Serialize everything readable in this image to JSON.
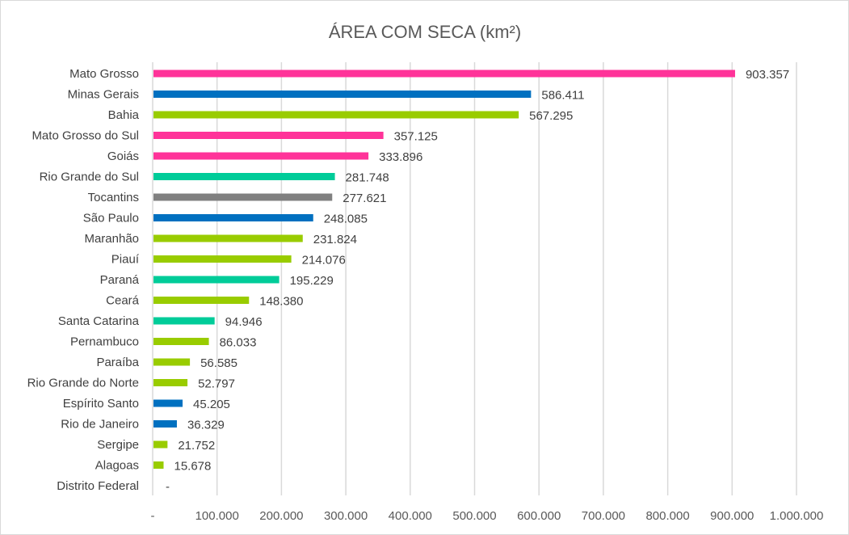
{
  "chart_data": {
    "type": "bar",
    "orientation": "horizontal",
    "title": "ÁREA COM SECA (km²)",
    "xlabel": "",
    "ylabel": "",
    "xlim": [
      0,
      1000000
    ],
    "grid": true,
    "legend": "none",
    "x_ticks": [
      "-",
      "100.000",
      "200.000",
      "300.000",
      "400.000",
      "500.000",
      "600.000",
      "700.000",
      "800.000",
      "900.000",
      "1.000.000"
    ],
    "x_tick_values": [
      0,
      100000,
      200000,
      300000,
      400000,
      500000,
      600000,
      700000,
      800000,
      900000,
      1000000
    ],
    "categories": [
      "Mato Grosso",
      "Minas Gerais",
      "Bahia",
      "Mato Grosso do Sul",
      "Goiás",
      "Rio Grande do Sul",
      "Tocantins",
      "São Paulo",
      "Maranhão",
      "Piauí",
      "Paraná",
      "Ceará",
      "Santa Catarina",
      "Pernambuco",
      "Paraíba",
      "Rio Grande do Norte",
      "Espírito Santo",
      "Rio de Janeiro",
      "Sergipe",
      "Alagoas",
      "Distrito Federal"
    ],
    "values": [
      903357,
      586411,
      567295,
      357125,
      333896,
      281748,
      277621,
      248085,
      231824,
      214076,
      195229,
      148380,
      94946,
      86033,
      56585,
      52797,
      45205,
      36329,
      21752,
      15678,
      0
    ],
    "data_labels": [
      "903.357",
      "586.411",
      "567.295",
      "357.125",
      "333.896",
      "281.748",
      "277.621",
      "248.085",
      "231.824",
      "214.076",
      "195.229",
      "148.380",
      "94.946",
      "86.033",
      "56.585",
      "52.797",
      "45.205",
      "36.329",
      "21.752",
      "15.678",
      "-"
    ],
    "colors": [
      "#FF3399",
      "#0070C0",
      "#99CC00",
      "#FF3399",
      "#FF3399",
      "#00CC99",
      "#808080",
      "#0070C0",
      "#99CC00",
      "#99CC00",
      "#00CC99",
      "#99CC00",
      "#00CC99",
      "#99CC00",
      "#99CC00",
      "#99CC00",
      "#0070C0",
      "#0070C0",
      "#99CC00",
      "#99CC00",
      "#99CC00"
    ]
  }
}
